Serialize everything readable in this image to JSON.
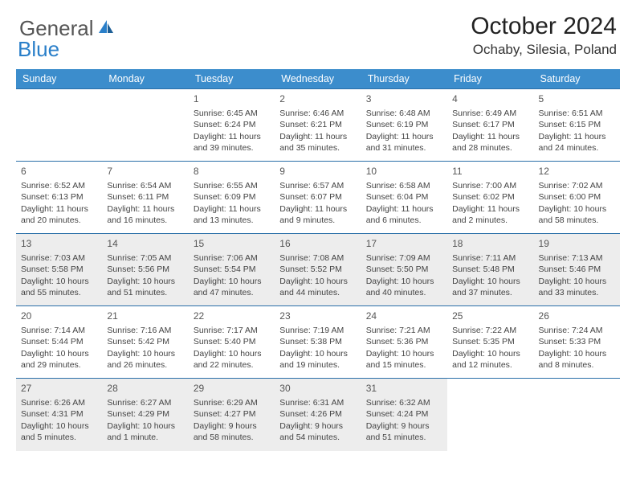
{
  "brand": {
    "name": "General",
    "accent": "Blue"
  },
  "title": "October 2024",
  "location": "Ochaby, Silesia, Poland",
  "colors": {
    "header_bg": "#3c8dcc",
    "row_border": "#2a6fa8",
    "alt_row_bg": "#ededed",
    "text": "#444",
    "brand_gray": "#555",
    "brand_blue": "#2a7fc9"
  },
  "typography": {
    "title_fontsize_pt": 22,
    "location_fontsize_pt": 13,
    "header_fontsize_pt": 9,
    "cell_fontsize_pt": 8,
    "daynum_fontsize_pt": 9
  },
  "days_of_week": [
    "Sunday",
    "Monday",
    "Tuesday",
    "Wednesday",
    "Thursday",
    "Friday",
    "Saturday"
  ],
  "weeks": [
    {
      "alt": false,
      "cells": [
        null,
        null,
        {
          "n": "1",
          "sunrise": "Sunrise: 6:45 AM",
          "sunset": "Sunset: 6:24 PM",
          "daylight": "Daylight: 11 hours and 39 minutes."
        },
        {
          "n": "2",
          "sunrise": "Sunrise: 6:46 AM",
          "sunset": "Sunset: 6:21 PM",
          "daylight": "Daylight: 11 hours and 35 minutes."
        },
        {
          "n": "3",
          "sunrise": "Sunrise: 6:48 AM",
          "sunset": "Sunset: 6:19 PM",
          "daylight": "Daylight: 11 hours and 31 minutes."
        },
        {
          "n": "4",
          "sunrise": "Sunrise: 6:49 AM",
          "sunset": "Sunset: 6:17 PM",
          "daylight": "Daylight: 11 hours and 28 minutes."
        },
        {
          "n": "5",
          "sunrise": "Sunrise: 6:51 AM",
          "sunset": "Sunset: 6:15 PM",
          "daylight": "Daylight: 11 hours and 24 minutes."
        }
      ]
    },
    {
      "alt": false,
      "cells": [
        {
          "n": "6",
          "sunrise": "Sunrise: 6:52 AM",
          "sunset": "Sunset: 6:13 PM",
          "daylight": "Daylight: 11 hours and 20 minutes."
        },
        {
          "n": "7",
          "sunrise": "Sunrise: 6:54 AM",
          "sunset": "Sunset: 6:11 PM",
          "daylight": "Daylight: 11 hours and 16 minutes."
        },
        {
          "n": "8",
          "sunrise": "Sunrise: 6:55 AM",
          "sunset": "Sunset: 6:09 PM",
          "daylight": "Daylight: 11 hours and 13 minutes."
        },
        {
          "n": "9",
          "sunrise": "Sunrise: 6:57 AM",
          "sunset": "Sunset: 6:07 PM",
          "daylight": "Daylight: 11 hours and 9 minutes."
        },
        {
          "n": "10",
          "sunrise": "Sunrise: 6:58 AM",
          "sunset": "Sunset: 6:04 PM",
          "daylight": "Daylight: 11 hours and 6 minutes."
        },
        {
          "n": "11",
          "sunrise": "Sunrise: 7:00 AM",
          "sunset": "Sunset: 6:02 PM",
          "daylight": "Daylight: 11 hours and 2 minutes."
        },
        {
          "n": "12",
          "sunrise": "Sunrise: 7:02 AM",
          "sunset": "Sunset: 6:00 PM",
          "daylight": "Daylight: 10 hours and 58 minutes."
        }
      ]
    },
    {
      "alt": true,
      "cells": [
        {
          "n": "13",
          "sunrise": "Sunrise: 7:03 AM",
          "sunset": "Sunset: 5:58 PM",
          "daylight": "Daylight: 10 hours and 55 minutes."
        },
        {
          "n": "14",
          "sunrise": "Sunrise: 7:05 AM",
          "sunset": "Sunset: 5:56 PM",
          "daylight": "Daylight: 10 hours and 51 minutes."
        },
        {
          "n": "15",
          "sunrise": "Sunrise: 7:06 AM",
          "sunset": "Sunset: 5:54 PM",
          "daylight": "Daylight: 10 hours and 47 minutes."
        },
        {
          "n": "16",
          "sunrise": "Sunrise: 7:08 AM",
          "sunset": "Sunset: 5:52 PM",
          "daylight": "Daylight: 10 hours and 44 minutes."
        },
        {
          "n": "17",
          "sunrise": "Sunrise: 7:09 AM",
          "sunset": "Sunset: 5:50 PM",
          "daylight": "Daylight: 10 hours and 40 minutes."
        },
        {
          "n": "18",
          "sunrise": "Sunrise: 7:11 AM",
          "sunset": "Sunset: 5:48 PM",
          "daylight": "Daylight: 10 hours and 37 minutes."
        },
        {
          "n": "19",
          "sunrise": "Sunrise: 7:13 AM",
          "sunset": "Sunset: 5:46 PM",
          "daylight": "Daylight: 10 hours and 33 minutes."
        }
      ]
    },
    {
      "alt": false,
      "cells": [
        {
          "n": "20",
          "sunrise": "Sunrise: 7:14 AM",
          "sunset": "Sunset: 5:44 PM",
          "daylight": "Daylight: 10 hours and 29 minutes."
        },
        {
          "n": "21",
          "sunrise": "Sunrise: 7:16 AM",
          "sunset": "Sunset: 5:42 PM",
          "daylight": "Daylight: 10 hours and 26 minutes."
        },
        {
          "n": "22",
          "sunrise": "Sunrise: 7:17 AM",
          "sunset": "Sunset: 5:40 PM",
          "daylight": "Daylight: 10 hours and 22 minutes."
        },
        {
          "n": "23",
          "sunrise": "Sunrise: 7:19 AM",
          "sunset": "Sunset: 5:38 PM",
          "daylight": "Daylight: 10 hours and 19 minutes."
        },
        {
          "n": "24",
          "sunrise": "Sunrise: 7:21 AM",
          "sunset": "Sunset: 5:36 PM",
          "daylight": "Daylight: 10 hours and 15 minutes."
        },
        {
          "n": "25",
          "sunrise": "Sunrise: 7:22 AM",
          "sunset": "Sunset: 5:35 PM",
          "daylight": "Daylight: 10 hours and 12 minutes."
        },
        {
          "n": "26",
          "sunrise": "Sunrise: 7:24 AM",
          "sunset": "Sunset: 5:33 PM",
          "daylight": "Daylight: 10 hours and 8 minutes."
        }
      ]
    },
    {
      "alt": true,
      "cells": [
        {
          "n": "27",
          "sunrise": "Sunrise: 6:26 AM",
          "sunset": "Sunset: 4:31 PM",
          "daylight": "Daylight: 10 hours and 5 minutes."
        },
        {
          "n": "28",
          "sunrise": "Sunrise: 6:27 AM",
          "sunset": "Sunset: 4:29 PM",
          "daylight": "Daylight: 10 hours and 1 minute."
        },
        {
          "n": "29",
          "sunrise": "Sunrise: 6:29 AM",
          "sunset": "Sunset: 4:27 PM",
          "daylight": "Daylight: 9 hours and 58 minutes."
        },
        {
          "n": "30",
          "sunrise": "Sunrise: 6:31 AM",
          "sunset": "Sunset: 4:26 PM",
          "daylight": "Daylight: 9 hours and 54 minutes."
        },
        {
          "n": "31",
          "sunrise": "Sunrise: 6:32 AM",
          "sunset": "Sunset: 4:24 PM",
          "daylight": "Daylight: 9 hours and 51 minutes."
        },
        null,
        null
      ]
    }
  ]
}
